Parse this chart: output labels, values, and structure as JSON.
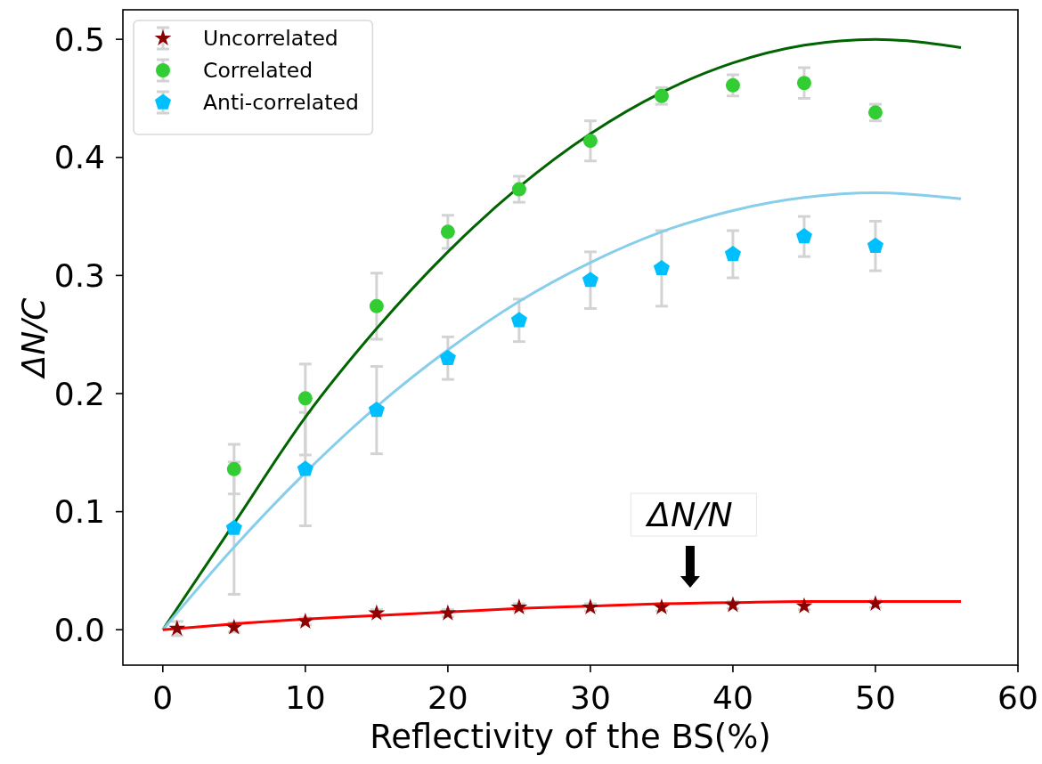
{
  "chart_data": {
    "type": "scatter",
    "xlabel": "Reflectivity of the BS(%)",
    "ylabel": "ΔN/C",
    "xlim": [
      -2.8,
      60
    ],
    "xticks": [
      0,
      10,
      20,
      30,
      40,
      50,
      60
    ],
    "ylim": [
      -0.03,
      0.525
    ],
    "yticks": [
      {
        "value": 0,
        "label": "0.0"
      },
      0.1,
      0.2,
      0.3,
      0.4,
      0.5
    ],
    "legend": "top left",
    "annotations": [
      {
        "text": "ΔN/N",
        "x": 37,
        "y": 0.022
      }
    ],
    "series": [
      {
        "name": "Uncorrelated",
        "marker": "star",
        "color": "#8b0000",
        "x": [
          1,
          5,
          10,
          15,
          20,
          25,
          30,
          35,
          40,
          45,
          50
        ],
        "values": [
          0.001,
          0.002,
          0.007,
          0.014,
          0.014,
          0.019,
          0.019,
          0.019,
          0.021,
          0.02,
          0.022
        ],
        "errors": [
          0.006,
          0.004,
          0.003,
          0.003,
          0.003,
          0.003,
          0.003,
          0.003,
          0.003,
          0.003,
          0.003
        ]
      },
      {
        "name": "Correlated",
        "marker": "circle",
        "color": "#32cd32",
        "x": [
          5,
          10,
          15,
          20,
          25,
          30,
          35,
          40,
          45,
          50
        ],
        "values": [
          0.136,
          0.196,
          0.274,
          0.337,
          0.373,
          0.414,
          0.452,
          0.461,
          0.463,
          0.438
        ],
        "errors": [
          0.021,
          [
            0.148,
            0.225
          ],
          0.028,
          0.014,
          0.011,
          0.017,
          0.007,
          0.009,
          0.013,
          0.007
        ]
      },
      {
        "name": "Anti-correlated",
        "color": "#00bfff",
        "x": [
          5,
          10,
          15,
          20,
          25,
          30,
          35,
          40,
          45,
          50
        ],
        "values": [
          0.086,
          0.136,
          0.186,
          0.23,
          0.262,
          0.296,
          0.306,
          0.318,
          0.333,
          0.325
        ],
        "errors": [
          0.056,
          0.048,
          0.037,
          0.018,
          0.018,
          0.024,
          0.032,
          0.02,
          0.017,
          0.021
        ]
      },
      {
        "type": "line",
        "color": "#006400",
        "x": [
          0,
          5,
          10,
          15,
          20,
          25,
          30,
          35,
          40,
          45,
          50,
          56
        ],
        "values": [
          0,
          0.09,
          0.18,
          0.255,
          0.32,
          0.375,
          0.42,
          0.455,
          0.48,
          0.495,
          0.5,
          0.493
        ]
      },
      {
        "type": "line",
        "color": "#87ceeb",
        "x": [
          0,
          5,
          10,
          15,
          20,
          25,
          30,
          35,
          40,
          45,
          50,
          56
        ],
        "values": [
          0,
          0.07,
          0.133,
          0.189,
          0.237,
          0.278,
          0.311,
          0.337,
          0.355,
          0.366,
          0.37,
          0.365
        ]
      },
      {
        "type": "line",
        "color": "#ff0000",
        "x": [
          0,
          5,
          10,
          15,
          20,
          25,
          30,
          35,
          40,
          45,
          50,
          56
        ],
        "values": [
          0,
          0.005,
          0.009,
          0.012,
          0.015,
          0.018,
          0.02,
          0.022,
          0.023,
          0.024,
          0.024,
          0.024
        ]
      }
    ]
  }
}
